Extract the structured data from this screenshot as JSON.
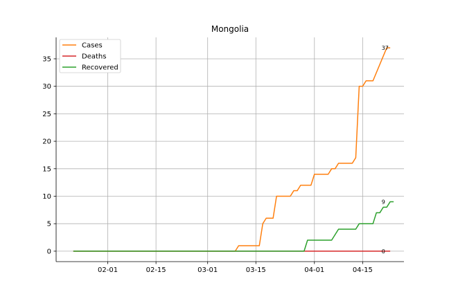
{
  "chart_data": {
    "type": "line",
    "title": "Mongolia",
    "xlabel": "",
    "ylabel": "",
    "x_start": "01-22",
    "x_end": "04-23",
    "xlim": [
      "01-17",
      "04-27"
    ],
    "ylim": [
      -1.9,
      38.9
    ],
    "x_ticks": [
      "02-01",
      "02-15",
      "03-01",
      "03-15",
      "04-01",
      "04-15"
    ],
    "y_ticks": [
      0,
      5,
      10,
      15,
      20,
      25,
      30,
      35
    ],
    "grid": true,
    "legend": "upper-left",
    "series": [
      {
        "name": "Cases",
        "color": "#ff7f0e",
        "end_label": "37",
        "points": [
          [
            "01-22",
            0
          ],
          [
            "03-09",
            0
          ],
          [
            "03-10",
            1
          ],
          [
            "03-16",
            1
          ],
          [
            "03-17",
            5
          ],
          [
            "03-18",
            6
          ],
          [
            "03-20",
            6
          ],
          [
            "03-21",
            10
          ],
          [
            "03-25",
            10
          ],
          [
            "03-26",
            11
          ],
          [
            "03-27",
            11
          ],
          [
            "03-28",
            12
          ],
          [
            "03-31",
            12
          ],
          [
            "04-01",
            14
          ],
          [
            "04-05",
            14
          ],
          [
            "04-06",
            15
          ],
          [
            "04-07",
            15
          ],
          [
            "04-08",
            16
          ],
          [
            "04-12",
            16
          ],
          [
            "04-13",
            17
          ],
          [
            "04-14",
            30
          ],
          [
            "04-15",
            30
          ],
          [
            "04-16",
            31
          ],
          [
            "04-18",
            31
          ],
          [
            "04-22",
            37
          ],
          [
            "04-23",
            37
          ]
        ]
      },
      {
        "name": "Deaths",
        "color": "#d62728",
        "end_label": "0",
        "points": [
          [
            "01-22",
            0
          ],
          [
            "04-23",
            0
          ]
        ]
      },
      {
        "name": "Recovered",
        "color": "#2ca02c",
        "end_label": "9",
        "points": [
          [
            "01-22",
            0
          ],
          [
            "03-29",
            0
          ],
          [
            "03-30",
            2
          ],
          [
            "04-06",
            2
          ],
          [
            "04-08",
            4
          ],
          [
            "04-13",
            4
          ],
          [
            "04-14",
            5
          ],
          [
            "04-18",
            5
          ],
          [
            "04-19",
            7
          ],
          [
            "04-20",
            7
          ],
          [
            "04-21",
            8
          ],
          [
            "04-22",
            8
          ],
          [
            "04-23",
            9
          ],
          [
            "04-24",
            9
          ]
        ]
      }
    ]
  }
}
